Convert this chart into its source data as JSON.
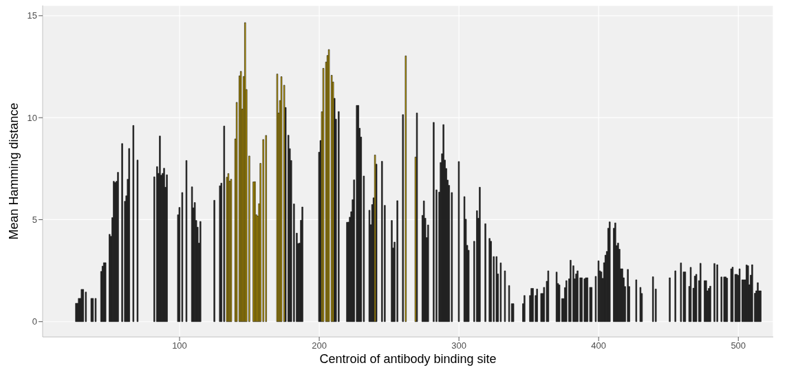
{
  "chart_data": {
    "type": "bar",
    "xlabel": "Centroid of antibody binding site",
    "ylabel": "Mean Hamming distance",
    "xlim": [
      2,
      525
    ],
    "ylim": [
      -0.75,
      15.5
    ],
    "xticks": [
      100,
      200,
      300,
      400,
      500
    ],
    "yticks": [
      0,
      5,
      10,
      15
    ],
    "grid": true,
    "legend": false,
    "series": [
      {
        "color": "#2b2b2b",
        "x": [
          26,
          27,
          28,
          29,
          30,
          31,
          33,
          37,
          38,
          40,
          44,
          45,
          46,
          47,
          50,
          51,
          52,
          53,
          54,
          55,
          56,
          59,
          61,
          62,
          63,
          64,
          67,
          70,
          82,
          84,
          85,
          86,
          87,
          88,
          89,
          90,
          91,
          99,
          100,
          102,
          105,
          109,
          110,
          111,
          112,
          113,
          114,
          115,
          125,
          129,
          130,
          132,
          176,
          178,
          179,
          180,
          182,
          184,
          185,
          186,
          187,
          188,
          200,
          201,
          211,
          212,
          214,
          220,
          221,
          222,
          223,
          224,
          225,
          227,
          228,
          229,
          230,
          232,
          236,
          237,
          238,
          239,
          241,
          245,
          247,
          252,
          253,
          254,
          256,
          260,
          270,
          274,
          275,
          276,
          277,
          278,
          282,
          284,
          286,
          287,
          288,
          289,
          290,
          291,
          292,
          293,
          295,
          300,
          304,
          305,
          306,
          307,
          311,
          313,
          314,
          315,
          319,
          322,
          323,
          325,
          327,
          328,
          330,
          333,
          336,
          338,
          339,
          346,
          347,
          351,
          352,
          353,
          355,
          356,
          359,
          360,
          361,
          363,
          364,
          370,
          371,
          372,
          374,
          375,
          376,
          377,
          379,
          380,
          382,
          383,
          384,
          385,
          387,
          388,
          390,
          391,
          392,
          394,
          395,
          398,
          400,
          401,
          402,
          403,
          404,
          405,
          406,
          407,
          408,
          411,
          412,
          413,
          414,
          415,
          416,
          417,
          418,
          419,
          421,
          422,
          427,
          430,
          431,
          439,
          441,
          451,
          455,
          459,
          461,
          462,
          465,
          466,
          468,
          469,
          470,
          472,
          473,
          476,
          477,
          478,
          479,
          480,
          483,
          485,
          488,
          490,
          491,
          492,
          495,
          496,
          498,
          499,
          500,
          501,
          503,
          504,
          505,
          506,
          507,
          508,
          509,
          510,
          512,
          513,
          514,
          515,
          516
        ],
        "values": [
          0.9,
          0.9,
          1.14,
          1.14,
          1.58,
          1.58,
          1.45,
          1.14,
          1.14,
          1.14,
          2.46,
          2.72,
          2.89,
          2.89,
          4.28,
          4.18,
          5.1,
          6.88,
          6.82,
          6.88,
          7.32,
          8.73,
          5.9,
          6.17,
          6.98,
          8.49,
          9.62,
          7.92,
          7.1,
          7.6,
          7.27,
          9.1,
          7.18,
          7.27,
          7.52,
          6.59,
          7.2,
          5.24,
          5.6,
          6.33,
          7.9,
          6.61,
          5.58,
          5.84,
          4.96,
          4.63,
          3.85,
          4.91,
          5.95,
          6.66,
          6.79,
          9.59,
          10.5,
          9.14,
          8.48,
          7.9,
          5.77,
          4.34,
          3.83,
          3.85,
          4.97,
          5.62,
          8.31,
          8.88,
          10.95,
          9.93,
          10.3,
          4.87,
          4.88,
          5.12,
          5.39,
          5.98,
          6.95,
          10.6,
          10.6,
          9.48,
          9.05,
          7.14,
          5.46,
          4.75,
          5.74,
          6.07,
          7.72,
          7.86,
          5.7,
          4.96,
          3.61,
          3.9,
          5.93,
          10.15,
          10.23,
          5.21,
          5.92,
          5.07,
          4.12,
          4.74,
          9.77,
          6.46,
          6.35,
          7.8,
          8.23,
          9.66,
          7.92,
          7.51,
          6.94,
          6.68,
          6.33,
          7.85,
          6.13,
          5.02,
          3.74,
          3.5,
          3.94,
          5.44,
          5.07,
          6.59,
          4.8,
          4.08,
          3.94,
          3.19,
          3.19,
          2.34,
          2.88,
          2.49,
          1.77,
          0.88,
          0.88,
          0.88,
          1.28,
          1.28,
          1.63,
          1.63,
          1.28,
          1.6,
          1.38,
          1.38,
          1.68,
          1.98,
          2.49,
          2.43,
          1.87,
          1.8,
          1.13,
          1.13,
          1.67,
          2.01,
          2.1,
          3.01,
          2.74,
          2.1,
          2.34,
          2.49,
          2.15,
          2.15,
          2.1,
          2.15,
          2.15,
          1.68,
          1.68,
          2.22,
          2.98,
          2.49,
          2.44,
          2.12,
          2.89,
          3.26,
          3.44,
          4.58,
          4.89,
          4.58,
          4.84,
          3.73,
          3.85,
          3.55,
          2.59,
          2.59,
          2.15,
          1.72,
          2.56,
          1.72,
          2.05,
          1.68,
          1.38,
          2.2,
          1.6,
          2.15,
          2.49,
          2.88,
          2.44,
          2.44,
          1.73,
          2.66,
          1.64,
          2.23,
          2.32,
          2.01,
          2.86,
          2.01,
          2.01,
          1.51,
          1.63,
          1.74,
          2.85,
          2.79,
          2.19,
          2.19,
          2.19,
          2.13,
          2.59,
          2.67,
          2.32,
          2.32,
          2.27,
          2.59,
          2.05,
          2.05,
          2.05,
          2.78,
          2.74,
          1.81,
          2.28,
          2.79,
          1.39,
          1.51,
          1.91,
          1.51,
          1.51
        ]
      },
      {
        "color": "#d4ae00",
        "x": [
          134,
          135,
          136,
          137,
          140,
          141,
          143,
          144,
          145,
          146,
          147,
          148,
          150,
          153,
          154,
          155,
          156,
          157,
          158,
          160,
          162,
          170,
          171,
          172,
          173,
          175,
          202,
          203,
          205,
          206,
          207,
          209,
          210,
          240,
          262,
          269
        ],
        "values": [
          7.08,
          7.26,
          6.89,
          6.98,
          8.96,
          10.75,
          12.05,
          12.27,
          10.42,
          12.02,
          14.66,
          11.38,
          8.12,
          6.85,
          6.86,
          5.24,
          5.18,
          5.78,
          7.76,
          8.93,
          9.13,
          12.14,
          10.23,
          10.84,
          12.01,
          11.59,
          10.29,
          12.42,
          12.73,
          13.05,
          13.34,
          12.08,
          11.75,
          8.17,
          13.03,
          8.07
        ]
      }
    ]
  }
}
